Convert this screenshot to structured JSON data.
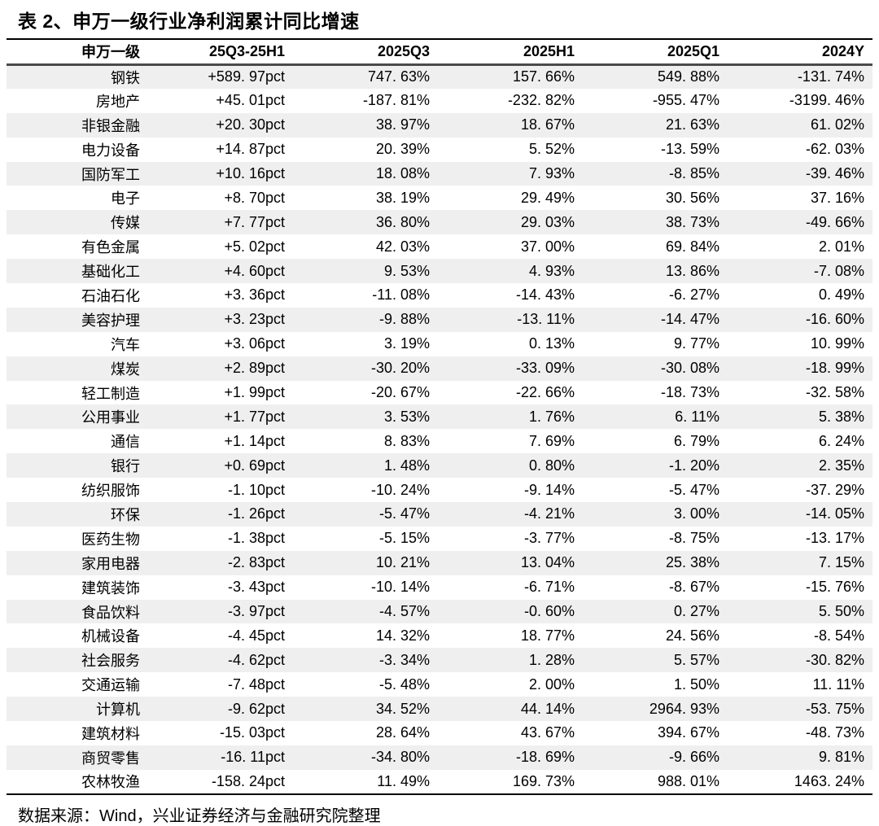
{
  "title": "表 2、申万一级行业净利润累计同比增速",
  "chart_data": {
    "type": "table",
    "columns": [
      "申万一级",
      "25Q3-25H1",
      "2025Q3",
      "2025H1",
      "2025Q1",
      "2024Y"
    ],
    "rows": [
      {
        "industry": "钢铁",
        "values": [
          "+589. 97pct",
          "747. 63%",
          "157. 66%",
          "549. 88%",
          "-131. 74%"
        ]
      },
      {
        "industry": "房地产",
        "values": [
          "+45. 01pct",
          "-187. 81%",
          "-232. 82%",
          "-955. 47%",
          "-3199. 46%"
        ]
      },
      {
        "industry": "非银金融",
        "values": [
          "+20. 30pct",
          "38. 97%",
          "18. 67%",
          "21. 63%",
          "61. 02%"
        ]
      },
      {
        "industry": "电力设备",
        "values": [
          "+14. 87pct",
          "20. 39%",
          "5. 52%",
          "-13. 59%",
          "-62. 03%"
        ]
      },
      {
        "industry": "国防军工",
        "values": [
          "+10. 16pct",
          "18. 08%",
          "7. 93%",
          "-8. 85%",
          "-39. 46%"
        ]
      },
      {
        "industry": "电子",
        "values": [
          "+8. 70pct",
          "38. 19%",
          "29. 49%",
          "30. 56%",
          "37. 16%"
        ]
      },
      {
        "industry": "传媒",
        "values": [
          "+7. 77pct",
          "36. 80%",
          "29. 03%",
          "38. 73%",
          "-49. 66%"
        ]
      },
      {
        "industry": "有色金属",
        "values": [
          "+5. 02pct",
          "42. 03%",
          "37. 00%",
          "69. 84%",
          "2. 01%"
        ]
      },
      {
        "industry": "基础化工",
        "values": [
          "+4. 60pct",
          "9. 53%",
          "4. 93%",
          "13. 86%",
          "-7. 08%"
        ]
      },
      {
        "industry": "石油石化",
        "values": [
          "+3. 36pct",
          "-11. 08%",
          "-14. 43%",
          "-6. 27%",
          "0. 49%"
        ]
      },
      {
        "industry": "美容护理",
        "values": [
          "+3. 23pct",
          "-9. 88%",
          "-13. 11%",
          "-14. 47%",
          "-16. 60%"
        ]
      },
      {
        "industry": "汽车",
        "values": [
          "+3. 06pct",
          "3. 19%",
          "0. 13%",
          "9. 77%",
          "10. 99%"
        ]
      },
      {
        "industry": "煤炭",
        "values": [
          "+2. 89pct",
          "-30. 20%",
          "-33. 09%",
          "-30. 08%",
          "-18. 99%"
        ]
      },
      {
        "industry": "轻工制造",
        "values": [
          "+1. 99pct",
          "-20. 67%",
          "-22. 66%",
          "-18. 73%",
          "-32. 58%"
        ]
      },
      {
        "industry": "公用事业",
        "values": [
          "+1. 77pct",
          "3. 53%",
          "1. 76%",
          "6. 11%",
          "5. 38%"
        ]
      },
      {
        "industry": "通信",
        "values": [
          "+1. 14pct",
          "8. 83%",
          "7. 69%",
          "6. 79%",
          "6. 24%"
        ]
      },
      {
        "industry": "银行",
        "values": [
          "+0. 69pct",
          "1. 48%",
          "0. 80%",
          "-1. 20%",
          "2. 35%"
        ]
      },
      {
        "industry": "纺织服饰",
        "values": [
          "-1. 10pct",
          "-10. 24%",
          "-9. 14%",
          "-5. 47%",
          "-37. 29%"
        ]
      },
      {
        "industry": "环保",
        "values": [
          "-1. 26pct",
          "-5. 47%",
          "-4. 21%",
          "3. 00%",
          "-14. 05%"
        ]
      },
      {
        "industry": "医药生物",
        "values": [
          "-1. 38pct",
          "-5. 15%",
          "-3. 77%",
          "-8. 75%",
          "-13. 17%"
        ]
      },
      {
        "industry": "家用电器",
        "values": [
          "-2. 83pct",
          "10. 21%",
          "13. 04%",
          "25. 38%",
          "7. 15%"
        ]
      },
      {
        "industry": "建筑装饰",
        "values": [
          "-3. 43pct",
          "-10. 14%",
          "-6. 71%",
          "-8. 67%",
          "-15. 76%"
        ]
      },
      {
        "industry": "食品饮料",
        "values": [
          "-3. 97pct",
          "-4. 57%",
          "-0. 60%",
          "0. 27%",
          "5. 50%"
        ]
      },
      {
        "industry": "机械设备",
        "values": [
          "-4. 45pct",
          "14. 32%",
          "18. 77%",
          "24. 56%",
          "-8. 54%"
        ]
      },
      {
        "industry": "社会服务",
        "values": [
          "-4. 62pct",
          "-3. 34%",
          "1. 28%",
          "5. 57%",
          "-30. 82%"
        ]
      },
      {
        "industry": "交通运输",
        "values": [
          "-7. 48pct",
          "-5. 48%",
          "2. 00%",
          "1. 50%",
          "11. 11%"
        ]
      },
      {
        "industry": "计算机",
        "values": [
          "-9. 62pct",
          "34. 52%",
          "44. 14%",
          "2964. 93%",
          "-53. 75%"
        ]
      },
      {
        "industry": "建筑材料",
        "values": [
          "-15. 03pct",
          "28. 64%",
          "43. 67%",
          "394. 67%",
          "-48. 73%"
        ]
      },
      {
        "industry": "商贸零售",
        "values": [
          "-16. 11pct",
          "-34. 80%",
          "-18. 69%",
          "-9. 66%",
          "9. 81%"
        ]
      },
      {
        "industry": "农林牧渔",
        "values": [
          "-158. 24pct",
          "11. 49%",
          "169. 73%",
          "988. 01%",
          "1463. 24%"
        ]
      }
    ],
    "layout": {
      "stripe_first_row": true,
      "value_alignment": "right"
    }
  },
  "footer": {
    "source": "数据来源：Wind，兴业证券经济与金融研究院整理"
  },
  "colors": {
    "stripe_row": "#efefef",
    "outer_border": "#000000",
    "header_rule": "#4a4a4a",
    "text": "#000000",
    "background": "#ffffff"
  }
}
